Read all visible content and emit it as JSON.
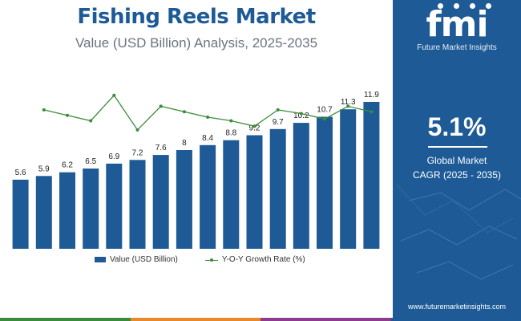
{
  "title": "Fishing Reels Market",
  "subtitle": "Value (USD Billion) Analysis, 2025-2035",
  "brand": {
    "logo_text": "fmi",
    "name": "Future Market Insights",
    "website": "www.futuremarketinsights.com"
  },
  "highlight": {
    "value": "5.1%",
    "label_line1": "Global Market",
    "label_line2": "CAGR (2025 - 2035)"
  },
  "legend": {
    "bar_label": "Value (USD Billion)",
    "line_label": "Y-O-Y Growth Rate (%)"
  },
  "colors": {
    "bar": "#1d5a96",
    "line": "#3a8c3a",
    "panel": "#1d5a96"
  },
  "chart_data": {
    "type": "bar",
    "categories": [
      "",
      "",
      "",
      "",
      "",
      "",
      "",
      "",
      "",
      "",
      "",
      "",
      "",
      "",
      "",
      ""
    ],
    "series": [
      {
        "name": "Value (USD Billion)",
        "values": [
          5.6,
          5.9,
          6.2,
          6.5,
          6.9,
          7.2,
          7.6,
          8,
          8.4,
          8.8,
          9.2,
          9.7,
          10.2,
          10.7,
          11.3,
          11.9
        ],
        "labels": [
          "5.6",
          "5.9",
          "6.2",
          "6.5",
          "6.9",
          "7.2",
          "7.6",
          "8",
          "8.4",
          "8.8",
          "9.2",
          "9.7",
          "10.2",
          "10.7",
          "11.3",
          "11.9"
        ]
      },
      {
        "name": "Y-O-Y Growth Rate (%)",
        "type": "line",
        "values": [
          null,
          5.4,
          5.1,
          4.8,
          6.2,
          4.3,
          5.6,
          5.3,
          5.0,
          4.8,
          4.5,
          5.4,
          5.2,
          4.9,
          5.6,
          5.3
        ]
      }
    ],
    "ylim": [
      0,
      12
    ],
    "grid": false,
    "legend": "bottom"
  }
}
